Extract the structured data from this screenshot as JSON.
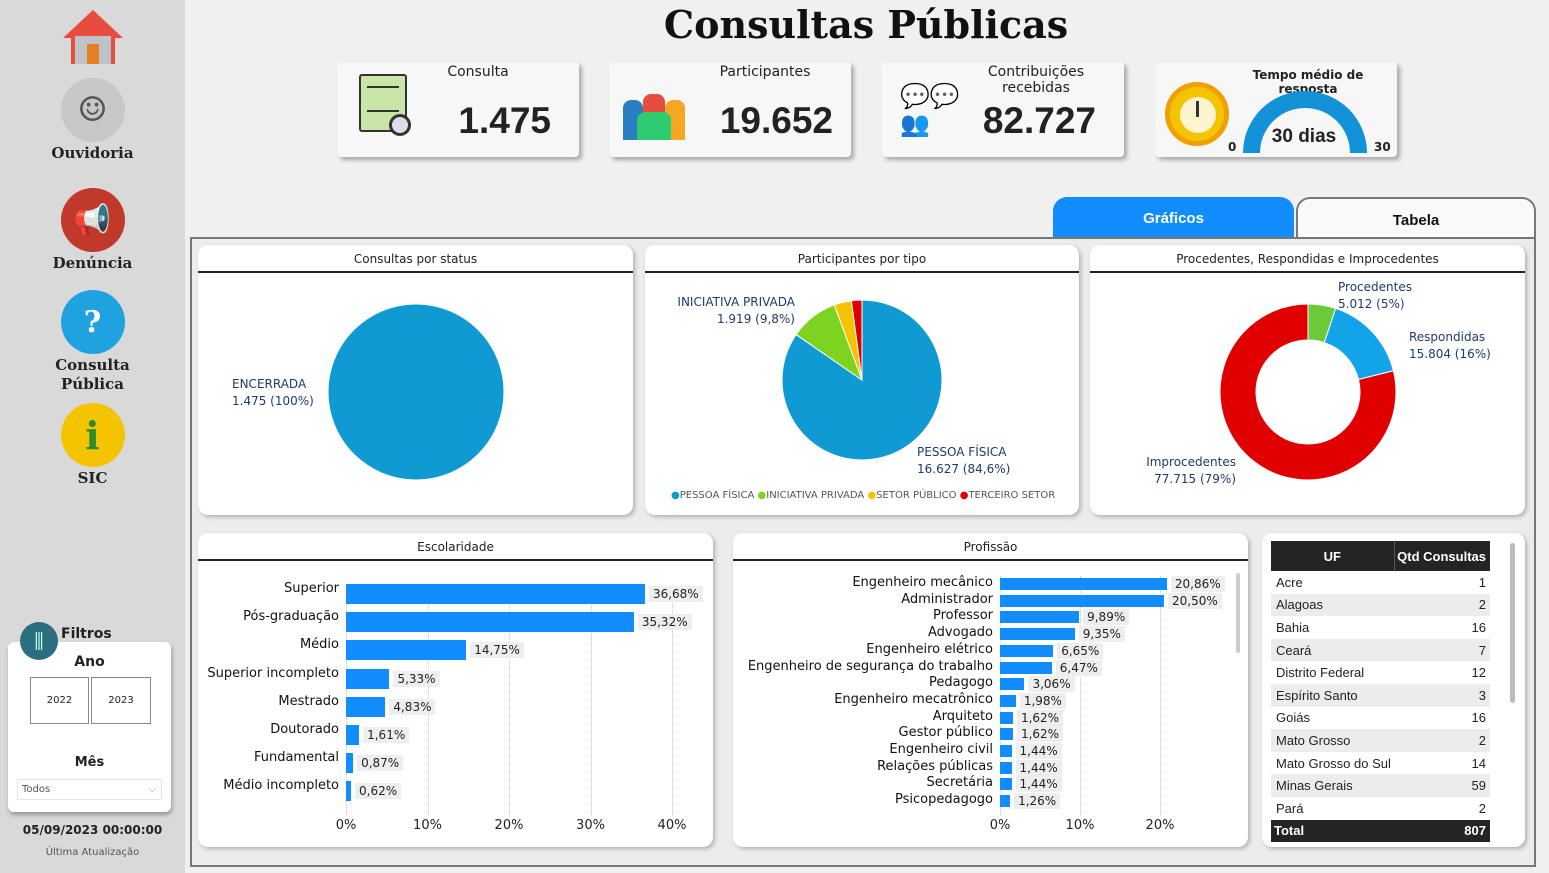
{
  "sidebar": {
    "items": [
      {
        "label": ""
      },
      {
        "label": "Ouvidoria"
      },
      {
        "label": "Denúncia"
      },
      {
        "label": "Consulta Pública"
      },
      {
        "label": "SIC"
      }
    ],
    "filters": {
      "title": "Filtros",
      "year_label": "Ano",
      "years": [
        "2022",
        "2023"
      ],
      "month_label": "Mês",
      "month_value": "Todos"
    },
    "last_update": "05/09/2023 00:00:00",
    "last_update_label": "Última Atualização"
  },
  "header": {
    "title": "Consultas Públicas"
  },
  "kpis": [
    {
      "label": "Consulta",
      "value": "1.475",
      "icon": "document-search-icon"
    },
    {
      "label": "Participantes",
      "value": "19.652",
      "icon": "people-icon"
    },
    {
      "label": "Contribuições recebidas",
      "value": "82.727",
      "icon": "group-chat-icon"
    },
    {
      "label": "Tempo médio de resposta",
      "value": "30 dias",
      "min": "0",
      "max": "30",
      "fill": 1.0,
      "icon": "clock-icon"
    }
  ],
  "tabs": [
    {
      "label": "Gráficos",
      "active": true
    },
    {
      "label": "Tabela",
      "active": false
    }
  ],
  "colors": {
    "accent": "#118dff",
    "pie_blue": "#0f9ad4",
    "green": "#7ed321",
    "yellow": "#f5c400",
    "red": "#e00000",
    "donut_blue": "#12a3e8"
  },
  "chart_data": [
    {
      "type": "pie",
      "title": "Consultas por status",
      "slices": [
        {
          "name": "ENCERRADA",
          "value": 1475,
          "label": "1.475 (100%)"
        }
      ]
    },
    {
      "type": "pie",
      "title": "Participantes por tipo",
      "legend": "bottom",
      "slices": [
        {
          "name": "PESSOA FÍSICA",
          "value": 16627,
          "label": "16.627 (84,6%)",
          "color": "#0f9ad4"
        },
        {
          "name": "INICIATIVA PRIVADA",
          "value": 1919,
          "label": "1.919 (9,8%)",
          "color": "#7ed321"
        },
        {
          "name": "SETOR PÚBLICO",
          "value": 690,
          "color": "#f5c400"
        },
        {
          "name": "TERCEIRO SETOR",
          "value": 416,
          "color": "#e00000"
        }
      ]
    },
    {
      "type": "pie",
      "title": "Procedentes, Respondidas e Improcedentes",
      "donut": true,
      "slices": [
        {
          "name": "Procedentes",
          "value": 5012,
          "label": "5.012 (5%)",
          "color": "#6cc93a"
        },
        {
          "name": "Respondidas",
          "value": 15804,
          "label": "15.804 (16%)",
          "color": "#12a3e8"
        },
        {
          "name": "Improcedentes",
          "value": 77715,
          "label": "77.715 (79%)",
          "color": "#e00000"
        }
      ]
    },
    {
      "type": "bar",
      "title": "Escolaridade",
      "orientation": "horizontal",
      "xlim": [
        0,
        40
      ],
      "ticks": [
        "0%",
        "10%",
        "20%",
        "30%",
        "40%"
      ],
      "categories": [
        "Superior",
        "Pós-graduação",
        "Médio",
        "Superior incompleto",
        "Mestrado",
        "Doutorado",
        "Fundamental",
        "Médio incompleto"
      ],
      "values": [
        36.68,
        35.32,
        14.75,
        5.33,
        4.83,
        1.61,
        0.87,
        0.62
      ],
      "labels": [
        "36,68%",
        "35,32%",
        "14,75%",
        "5,33%",
        "4,83%",
        "1,61%",
        "0,87%",
        "0,62%"
      ]
    },
    {
      "type": "bar",
      "title": "Profissão",
      "orientation": "horizontal",
      "xlim": [
        0,
        26
      ],
      "ticks": [
        "0%",
        "10%",
        "20%"
      ],
      "categories": [
        "Engenheiro mecânico",
        "Administrador",
        "Professor",
        "Advogado",
        "Engenheiro elétrico",
        "Engenheiro de segurança do trabalho",
        "Pedagogo",
        "Engenheiro mecatrônico",
        "Arquiteto",
        "Gestor público",
        "Engenheiro civil",
        "Relações públicas",
        "Secretária",
        "Psicopedagogo"
      ],
      "values": [
        20.86,
        20.5,
        9.89,
        9.35,
        6.65,
        6.47,
        3.06,
        1.98,
        1.62,
        1.62,
        1.44,
        1.44,
        1.44,
        1.26
      ],
      "labels": [
        "20,86%",
        "20,50%",
        "9,89%",
        "9,35%",
        "6,65%",
        "6,47%",
        "3,06%",
        "1,98%",
        "1,62%",
        "1,62%",
        "1,44%",
        "1,44%",
        "1,44%",
        "1,26%"
      ]
    },
    {
      "type": "table",
      "columns": [
        "UF",
        "Qtd Consultas"
      ],
      "rows": [
        [
          "Acre",
          "1"
        ],
        [
          "Alagoas",
          "2"
        ],
        [
          "Bahia",
          "16"
        ],
        [
          "Ceará",
          "7"
        ],
        [
          "Distrito Federal",
          "12"
        ],
        [
          "Espírito Santo",
          "3"
        ],
        [
          "Goiás",
          "16"
        ],
        [
          "Mato Grosso",
          "2"
        ],
        [
          "Mato Grosso do Sul",
          "14"
        ],
        [
          "Minas Gerais",
          "59"
        ],
        [
          "Pará",
          "2"
        ]
      ],
      "total": [
        "Total",
        "807"
      ]
    }
  ]
}
